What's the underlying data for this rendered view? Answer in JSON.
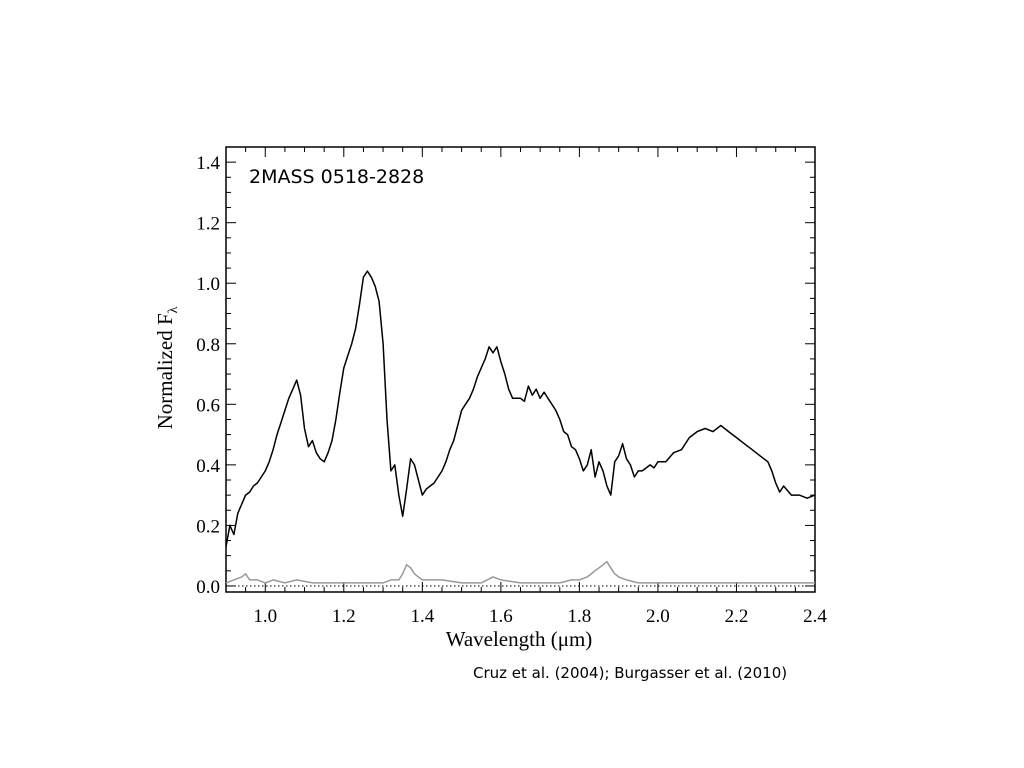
{
  "credit": "Cruz et al. (2004); Burgasser et al. (2010)",
  "chart_data": {
    "type": "line",
    "title": "",
    "annotation": "2MASS 0518-2828",
    "xlabel": "Wavelength (μm)",
    "ylabel": "Normalized F",
    "ylabel_subscript": "λ",
    "xlim": [
      0.9,
      2.4
    ],
    "ylim": [
      -0.02,
      1.45
    ],
    "xticks": [
      1.0,
      1.2,
      1.4,
      1.6,
      1.8,
      2.0,
      2.2,
      2.4
    ],
    "xtick_labels": [
      "1.0",
      "1.2",
      "1.4",
      "1.6",
      "1.8",
      "2.0",
      "2.2",
      "2.4"
    ],
    "yticks": [
      0.0,
      0.2,
      0.4,
      0.6,
      0.8,
      1.0,
      1.2,
      1.4
    ],
    "ytick_labels": [
      "0.0",
      "0.2",
      "0.4",
      "0.6",
      "0.8",
      "1.0",
      "1.2",
      "1.4"
    ],
    "grid": false,
    "zero_line": "dotted",
    "series": [
      {
        "color": "#000000",
        "x": [
          0.9,
          0.91,
          0.92,
          0.93,
          0.94,
          0.95,
          0.96,
          0.97,
          0.98,
          0.99,
          1.0,
          1.01,
          1.02,
          1.03,
          1.04,
          1.05,
          1.06,
          1.07,
          1.08,
          1.09,
          1.1,
          1.11,
          1.12,
          1.13,
          1.14,
          1.15,
          1.16,
          1.17,
          1.18,
          1.19,
          1.2,
          1.21,
          1.22,
          1.23,
          1.24,
          1.25,
          1.26,
          1.27,
          1.28,
          1.29,
          1.3,
          1.31,
          1.32,
          1.33,
          1.34,
          1.35,
          1.36,
          1.37,
          1.38,
          1.39,
          1.4,
          1.41,
          1.42,
          1.43,
          1.44,
          1.45,
          1.46,
          1.47,
          1.48,
          1.49,
          1.5,
          1.51,
          1.52,
          1.53,
          1.54,
          1.55,
          1.56,
          1.57,
          1.58,
          1.59,
          1.6,
          1.61,
          1.62,
          1.63,
          1.64,
          1.65,
          1.66,
          1.67,
          1.68,
          1.69,
          1.7,
          1.71,
          1.72,
          1.73,
          1.74,
          1.75,
          1.76,
          1.77,
          1.78,
          1.79,
          1.8,
          1.81,
          1.82,
          1.83,
          1.84,
          1.85,
          1.86,
          1.87,
          1.88,
          1.89,
          1.9,
          1.91,
          1.92,
          1.93,
          1.94,
          1.95,
          1.96,
          1.97,
          1.98,
          1.99,
          2.0,
          2.02,
          2.04,
          2.06,
          2.08,
          2.1,
          2.12,
          2.14,
          2.16,
          2.18,
          2.2,
          2.22,
          2.24,
          2.26,
          2.28,
          2.29,
          2.3,
          2.31,
          2.32,
          2.34,
          2.36,
          2.38,
          2.4
        ],
        "y": [
          0.13,
          0.2,
          0.17,
          0.24,
          0.27,
          0.3,
          0.31,
          0.33,
          0.34,
          0.36,
          0.38,
          0.41,
          0.45,
          0.5,
          0.54,
          0.58,
          0.62,
          0.65,
          0.68,
          0.63,
          0.52,
          0.46,
          0.48,
          0.44,
          0.42,
          0.41,
          0.44,
          0.48,
          0.55,
          0.64,
          0.72,
          0.76,
          0.8,
          0.85,
          0.93,
          1.02,
          1.04,
          1.02,
          0.99,
          0.94,
          0.8,
          0.55,
          0.38,
          0.4,
          0.3,
          0.23,
          0.32,
          0.42,
          0.4,
          0.35,
          0.3,
          0.32,
          0.33,
          0.34,
          0.36,
          0.38,
          0.41,
          0.45,
          0.48,
          0.53,
          0.58,
          0.6,
          0.62,
          0.65,
          0.69,
          0.72,
          0.75,
          0.79,
          0.77,
          0.79,
          0.74,
          0.7,
          0.65,
          0.62,
          0.62,
          0.62,
          0.61,
          0.66,
          0.63,
          0.65,
          0.62,
          0.64,
          0.62,
          0.6,
          0.58,
          0.55,
          0.51,
          0.5,
          0.46,
          0.45,
          0.42,
          0.38,
          0.4,
          0.45,
          0.36,
          0.41,
          0.38,
          0.33,
          0.3,
          0.41,
          0.43,
          0.47,
          0.42,
          0.4,
          0.36,
          0.38,
          0.38,
          0.39,
          0.4,
          0.39,
          0.41,
          0.41,
          0.44,
          0.45,
          0.49,
          0.51,
          0.52,
          0.51,
          0.53,
          0.51,
          0.49,
          0.47,
          0.45,
          0.43,
          0.41,
          0.38,
          0.34,
          0.31,
          0.33,
          0.3,
          0.3,
          0.29,
          0.3
        ]
      },
      {
        "color": "#999999",
        "x": [
          0.9,
          0.92,
          0.94,
          0.95,
          0.96,
          0.98,
          1.0,
          1.02,
          1.05,
          1.08,
          1.12,
          1.15,
          1.2,
          1.25,
          1.3,
          1.32,
          1.34,
          1.35,
          1.36,
          1.37,
          1.38,
          1.39,
          1.4,
          1.42,
          1.45,
          1.5,
          1.55,
          1.58,
          1.6,
          1.65,
          1.7,
          1.75,
          1.78,
          1.8,
          1.82,
          1.84,
          1.85,
          1.86,
          1.87,
          1.88,
          1.89,
          1.9,
          1.92,
          1.95,
          2.0,
          2.05,
          2.1,
          2.2,
          2.3,
          2.4
        ],
        "y": [
          0.01,
          0.02,
          0.03,
          0.04,
          0.02,
          0.02,
          0.01,
          0.02,
          0.01,
          0.02,
          0.01,
          0.01,
          0.01,
          0.01,
          0.01,
          0.02,
          0.02,
          0.04,
          0.07,
          0.06,
          0.04,
          0.03,
          0.02,
          0.02,
          0.02,
          0.01,
          0.01,
          0.03,
          0.02,
          0.01,
          0.01,
          0.01,
          0.02,
          0.02,
          0.03,
          0.05,
          0.06,
          0.07,
          0.08,
          0.06,
          0.04,
          0.03,
          0.02,
          0.01,
          0.01,
          0.01,
          0.01,
          0.01,
          0.01,
          0.01
        ]
      }
    ]
  }
}
